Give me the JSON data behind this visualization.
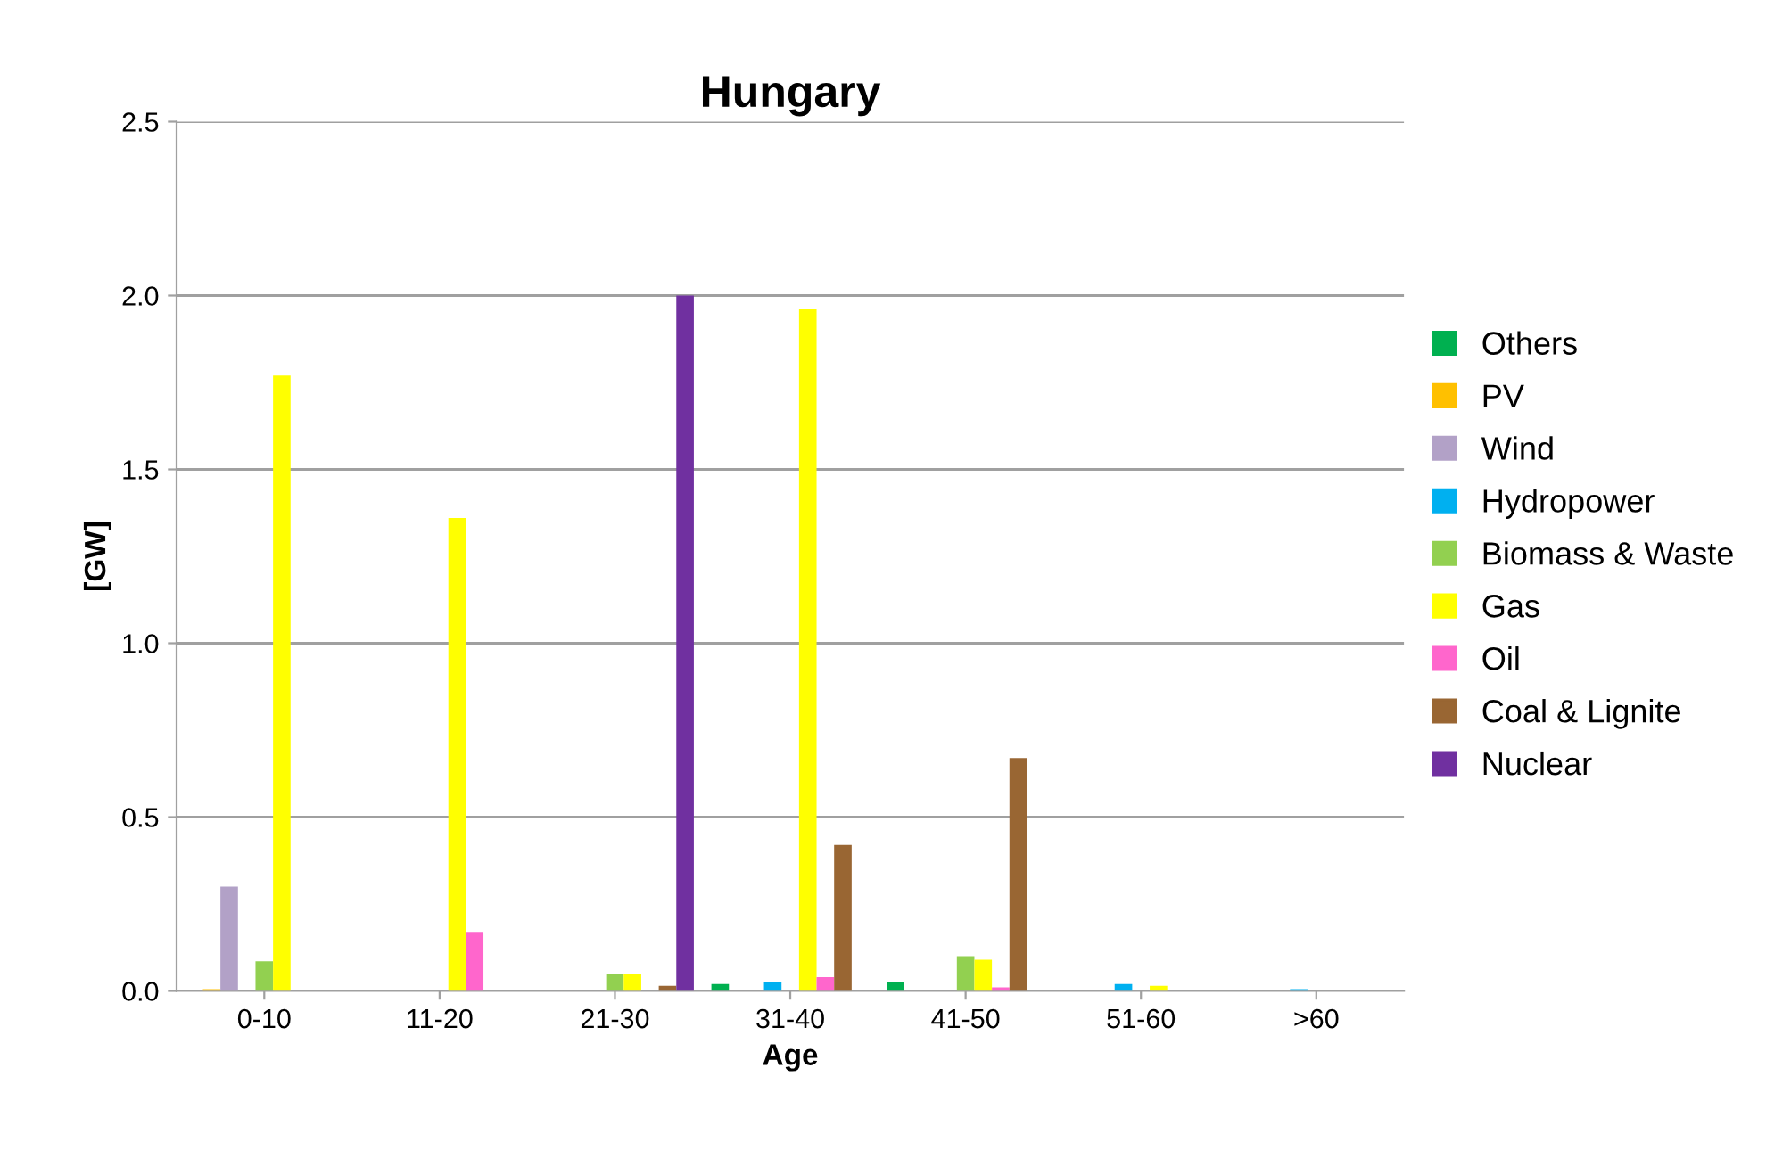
{
  "chart_data": {
    "type": "bar",
    "title": "Hungary",
    "xlabel": "Age",
    "ylabel": "[GW]",
    "categories": [
      "0-10",
      "11-20",
      "21-30",
      "31-40",
      "41-50",
      "51-60",
      ">60"
    ],
    "series": [
      {
        "name": "Others",
        "color": "#00b050",
        "values": [
          null,
          0,
          0,
          0.02,
          0.025,
          0,
          0
        ]
      },
      {
        "name": "PV",
        "color": "#ffc000",
        "values": [
          0.005,
          0,
          0,
          0,
          0,
          0,
          0
        ]
      },
      {
        "name": "Wind",
        "color": "#b2a1c7",
        "values": [
          0.3,
          0,
          0,
          0,
          0,
          0,
          0
        ]
      },
      {
        "name": "Hydropower",
        "color": "#00b0f0",
        "values": [
          null,
          0,
          0,
          0.025,
          0,
          0.02,
          0.005
        ]
      },
      {
        "name": "Biomass & Waste",
        "color": "#92d050",
        "values": [
          0.085,
          0,
          0.05,
          0,
          0.1,
          0,
          0
        ]
      },
      {
        "name": "Gas",
        "color": "#ffff00",
        "values": [
          1.77,
          1.36,
          0.05,
          1.96,
          0.09,
          0.015,
          0
        ]
      },
      {
        "name": "Oil",
        "color": "#ff66cc",
        "values": [
          null,
          0.17,
          0,
          0.04,
          0.01,
          0,
          0
        ]
      },
      {
        "name": "Coal & Lignite",
        "color": "#996633",
        "values": [
          0,
          0,
          0.015,
          0.42,
          0.67,
          0,
          0
        ]
      },
      {
        "name": "Nuclear",
        "color": "#7030a0",
        "values": [
          0,
          0,
          2.0,
          0,
          0,
          0,
          0
        ]
      }
    ],
    "ylim": [
      0,
      2.5
    ],
    "yticks": [
      {
        "value": 0,
        "label": "0.0"
      },
      {
        "value": 0.5,
        "label": "0.5"
      },
      {
        "value": 1,
        "label": "1.0"
      },
      {
        "value": 1.5,
        "label": "1.5"
      },
      {
        "value": 2,
        "label": "2.0"
      },
      {
        "value": 2.5,
        "label": "2.5"
      }
    ],
    "grid": "y",
    "legend": "right"
  }
}
